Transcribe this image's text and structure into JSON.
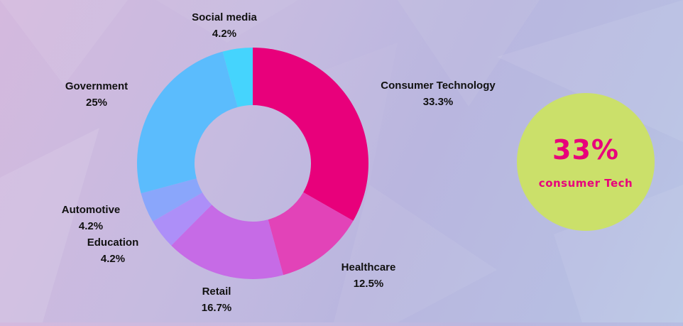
{
  "chart_data": {
    "type": "pie",
    "title": "",
    "categories": [
      "Consumer Technology",
      "Healthcare",
      "Retail",
      "Education",
      "Automotive",
      "Government",
      "Social media"
    ],
    "series": [
      {
        "values": [
          33.3,
          12.5,
          16.7,
          4.2,
          4.2,
          25,
          4.2
        ]
      }
    ],
    "value_labels": [
      "33.3%",
      "12.5%",
      "16.7%",
      "4.2%",
      "4.2%",
      "25%",
      "4.2%"
    ],
    "colors": [
      "#e8007b",
      "#e243b8",
      "#c66be6",
      "#ad8ff8",
      "#8aa6fb",
      "#5bbcfd",
      "#45d4fd"
    ],
    "hole": "donut",
    "start_angle": "12 o'clock, clockwise",
    "legend": "none (labels beside slices)"
  },
  "callout": {
    "value": "33%",
    "caption": "consumer Tech",
    "circle_color": "#cbe06a",
    "text_color": "#e8007b"
  }
}
